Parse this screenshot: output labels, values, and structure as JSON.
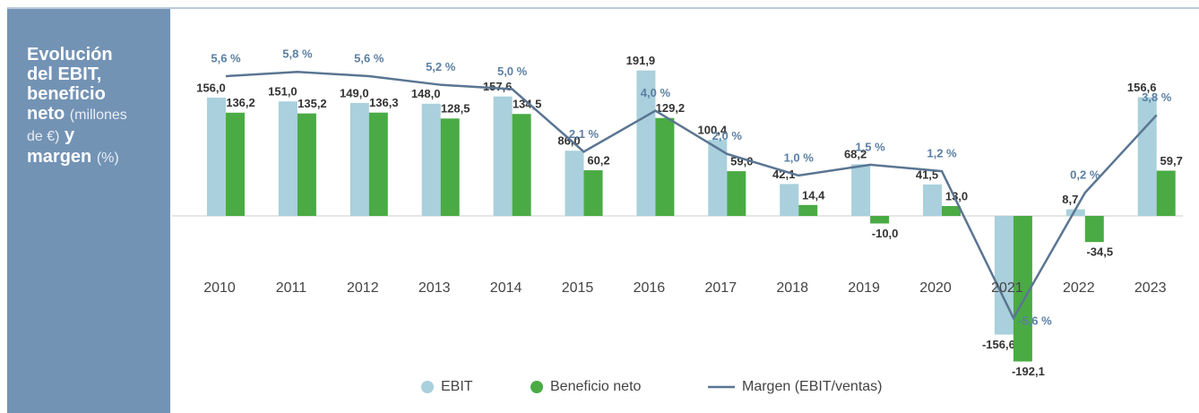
{
  "chart_data": {
    "type": "bar",
    "title_parts": [
      {
        "text": "Evolución del EBIT, beneficio neto",
        "bold": true
      },
      {
        "text": "(millones de €)",
        "bold": false
      },
      {
        "text": "y margen",
        "bold": true
      },
      {
        "text": "(%)",
        "bold": false
      }
    ],
    "categories": [
      "2010",
      "2011",
      "2012",
      "2013",
      "2014",
      "2015",
      "2016",
      "2017",
      "2018",
      "2019",
      "2020",
      "2021",
      "2022",
      "2023"
    ],
    "series": [
      {
        "name": "EBIT",
        "color": "#a9d0dc",
        "values": [
          156.0,
          151.0,
          149.0,
          148.0,
          157.6,
          86.0,
          191.9,
          100.4,
          42.1,
          68.2,
          41.5,
          -156.6,
          8.7,
          156.6
        ],
        "value_labels": [
          "156,0",
          "151,0",
          "149,0",
          "148,0",
          "157,6",
          "86,0",
          "191,9",
          "100,4",
          "42,1",
          "68,2",
          "41,5",
          "-156,6",
          "8,7",
          "156,6"
        ]
      },
      {
        "name": "Beneficio neto",
        "color": "#4aab45",
        "values": [
          136.2,
          135.2,
          136.3,
          128.5,
          134.5,
          60.2,
          129.2,
          59.0,
          14.4,
          -10.0,
          13.0,
          -192.1,
          -34.5,
          59.7
        ],
        "value_labels": [
          "136,2",
          "135,2",
          "136,3",
          "128,5",
          "134,5",
          "60,2",
          "129,2",
          "59,0",
          "14,4",
          "-10,0",
          "13,0",
          "-192,1",
          "-34,5",
          "59,7"
        ]
      },
      {
        "name": "Margen (EBIT/ventas)",
        "color": "#5a7592",
        "type": "line",
        "axis": "y2",
        "values": [
          5.6,
          5.8,
          5.6,
          5.2,
          5.0,
          2.1,
          4.0,
          2.0,
          1.0,
          1.5,
          1.2,
          -5.6,
          0.2,
          3.8
        ],
        "value_labels": [
          "5,6 %",
          "5,8 %",
          "5,6 %",
          "5,2 %",
          "5,0 %",
          "2,1 %",
          "4,0 %",
          "2,0 %",
          "1,0 %",
          "1,5 %",
          "1,2 %",
          "-5,6 %",
          "0,2 %",
          "3,8 %"
        ]
      }
    ],
    "legend": "bottom"
  }
}
